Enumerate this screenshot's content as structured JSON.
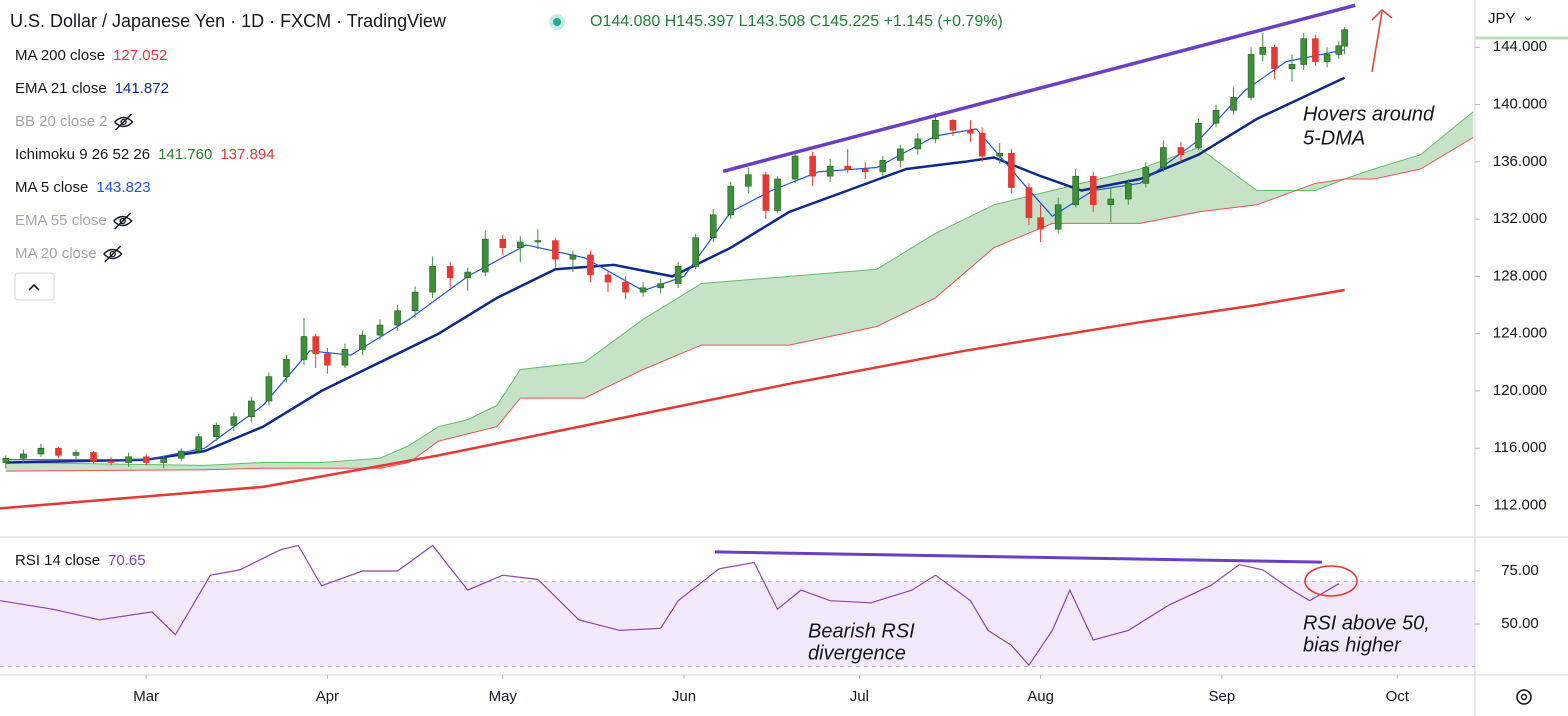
{
  "header": {
    "title": "U.S. Dollar / Japanese Yen · 1D · FXCM · TradingView",
    "ohlc": "O144.080 H145.397 L143.508 C145.225 +1.145 (+0.79%)"
  },
  "currency": "JPY",
  "chart_data": [
    {
      "type": "candlestick",
      "xlim": [
        35,
        287.3
      ],
      "xticks": [
        {
          "value": 60,
          "label": "Mar"
        },
        {
          "value": 91,
          "label": "Apr"
        },
        {
          "value": 121,
          "label": "May"
        },
        {
          "value": 152,
          "label": "Jun"
        },
        {
          "value": 182,
          "label": "Jul"
        },
        {
          "value": 213,
          "label": "Aug"
        },
        {
          "value": 244,
          "label": "Sep"
        },
        {
          "value": 274,
          "label": "Oct"
        }
      ],
      "ylim": [
        109.8,
        147.3
      ],
      "yticks": [
        {
          "value": 112,
          "label": "112.000"
        },
        {
          "value": 116,
          "label": "116.000"
        },
        {
          "value": 120,
          "label": "120.000"
        },
        {
          "value": 124,
          "label": "124.000"
        },
        {
          "value": 128,
          "label": "128.000"
        },
        {
          "value": 132,
          "label": "132.000"
        },
        {
          "value": 136,
          "label": "136.000"
        },
        {
          "value": 140,
          "label": "140.000"
        },
        {
          "value": 144,
          "label": "144.000"
        }
      ],
      "up_color": "#3f8f3a",
      "down_color": "#e53935",
      "candles": {
        "x": [
          36,
          39,
          42,
          45,
          48,
          51,
          54,
          57,
          60,
          63,
          66,
          69,
          72,
          75,
          78,
          81,
          84,
          87,
          89,
          91,
          94,
          97,
          100,
          103,
          106,
          109,
          112,
          115,
          118,
          121,
          124,
          127,
          130,
          133,
          136,
          139,
          142,
          145,
          148,
          151,
          154,
          157,
          160,
          163,
          166,
          168,
          171,
          174,
          177,
          180,
          183,
          186,
          189,
          192,
          195,
          198,
          201,
          203,
          206,
          208,
          211,
          213,
          216,
          219,
          222,
          225,
          228,
          231,
          234,
          237,
          240,
          243,
          246,
          249,
          251,
          253,
          256,
          258,
          260,
          262,
          264,
          265
        ],
        "open": [
          115.0,
          115.3,
          115.6,
          116.0,
          115.5,
          115.7,
          115.1,
          115.0,
          115.4,
          115.0,
          115.3,
          115.8,
          116.8,
          117.6,
          118.2,
          119.3,
          121.0,
          122.2,
          123.8,
          122.6,
          121.8,
          122.9,
          123.9,
          124.6,
          125.6,
          126.9,
          128.7,
          127.9,
          128.3,
          130.6,
          130.0,
          130.4,
          130.5,
          129.2,
          129.5,
          128.1,
          127.6,
          126.9,
          127.2,
          127.5,
          128.7,
          130.7,
          132.3,
          134.3,
          135.1,
          132.6,
          134.8,
          136.4,
          135.0,
          135.7,
          135.5,
          135.3,
          136.1,
          136.9,
          137.6,
          138.9,
          138.2,
          138.0,
          136.4,
          136.6,
          134.2,
          132.1,
          131.3,
          133.0,
          135.0,
          133.0,
          133.4,
          134.5,
          135.6,
          137.0,
          137.0,
          138.7,
          139.6,
          140.5,
          143.5,
          144.0,
          142.5,
          142.8,
          144.6,
          143.0,
          143.5,
          144.08
        ],
        "high": [
          115.5,
          115.9,
          116.3,
          116.1,
          115.9,
          115.8,
          115.4,
          115.7,
          115.6,
          115.5,
          116.0,
          117.0,
          117.8,
          118.5,
          119.6,
          121.3,
          122.5,
          125.1,
          124.0,
          123.0,
          123.3,
          124.2,
          125.0,
          126.0,
          127.3,
          129.4,
          129.0,
          128.6,
          131.2,
          130.9,
          130.8,
          131.3,
          130.7,
          129.8,
          129.8,
          128.4,
          128.0,
          127.6,
          127.8,
          129.0,
          131.0,
          132.7,
          134.6,
          135.6,
          135.3,
          135.0,
          136.8,
          136.7,
          136.2,
          136.9,
          136.0,
          136.4,
          137.2,
          138.0,
          139.4,
          139.0,
          138.9,
          138.4,
          137.3,
          136.9,
          134.5,
          133.0,
          133.5,
          135.5,
          135.3,
          134.2,
          134.8,
          136.0,
          137.5,
          137.4,
          139.0,
          140.0,
          141.2,
          144.0,
          145.0,
          144.2,
          143.5,
          145.0,
          144.9,
          144.0,
          144.4,
          145.397
        ],
        "low": [
          114.6,
          115.0,
          115.4,
          115.3,
          115.2,
          114.9,
          114.8,
          114.7,
          114.8,
          114.6,
          115.1,
          115.6,
          116.5,
          117.2,
          117.8,
          119.0,
          120.6,
          121.8,
          121.6,
          121.2,
          121.6,
          122.5,
          123.6,
          124.2,
          125.1,
          126.5,
          127.2,
          127.0,
          128.0,
          129.5,
          129.0,
          129.9,
          128.6,
          128.3,
          127.6,
          126.9,
          126.4,
          126.6,
          126.8,
          127.2,
          128.5,
          130.4,
          132.0,
          133.8,
          132.0,
          132.4,
          134.5,
          134.3,
          134.6,
          135.2,
          134.8,
          135.0,
          135.6,
          136.5,
          137.3,
          137.8,
          137.4,
          136.0,
          135.9,
          133.8,
          131.6,
          130.4,
          131.0,
          132.8,
          132.5,
          131.8,
          133.0,
          134.2,
          135.3,
          136.0,
          136.8,
          138.4,
          139.3,
          140.3,
          143.0,
          141.8,
          141.6,
          142.4,
          142.7,
          142.6,
          143.2,
          143.508
        ],
        "close": [
          115.3,
          115.6,
          116.0,
          115.5,
          115.7,
          115.1,
          115.0,
          115.4,
          115.0,
          115.3,
          115.8,
          116.8,
          117.6,
          118.2,
          119.3,
          121.0,
          122.2,
          123.8,
          122.6,
          121.8,
          122.9,
          123.9,
          124.6,
          125.6,
          126.9,
          128.7,
          127.9,
          128.3,
          130.6,
          130.0,
          130.4,
          130.5,
          129.2,
          129.5,
          128.1,
          127.6,
          126.9,
          127.2,
          127.5,
          128.7,
          130.7,
          132.3,
          134.3,
          135.1,
          132.6,
          134.8,
          136.4,
          135.0,
          135.7,
          135.5,
          135.3,
          136.1,
          136.9,
          137.6,
          138.9,
          138.2,
          138.0,
          136.4,
          136.6,
          134.2,
          132.1,
          131.3,
          133.0,
          135.0,
          133.0,
          133.4,
          134.5,
          135.6,
          137.0,
          136.5,
          138.7,
          139.6,
          140.5,
          143.5,
          144.0,
          142.5,
          142.8,
          144.6,
          143.0,
          143.5,
          144.1,
          145.225
        ]
      },
      "cloud": {
        "name": "Ichimoku 9 26 52 26",
        "labels": [
          "141.760",
          "137.894"
        ],
        "label_colors": [
          "#2e7d32",
          "#e53935"
        ],
        "fill": "rgba(67,160,71,0.3)",
        "color_a": "#66bb6a",
        "color_b": "#ef5350",
        "x": [
          36,
          70,
          80,
          90,
          100,
          105,
          110,
          115,
          120,
          124,
          135,
          145,
          155,
          170,
          185,
          195,
          205,
          215,
          230,
          240,
          250,
          260,
          265,
          270,
          278,
          287
        ],
        "span_a": [
          115.0,
          114.8,
          115.0,
          115.0,
          115.3,
          116.2,
          117.5,
          118.0,
          119.0,
          121.5,
          122.0,
          125.0,
          127.5,
          128.0,
          128.5,
          131.0,
          133.0,
          134.0,
          135.5,
          137.0,
          134.0,
          134.0,
          134.8,
          135.5,
          136.5,
          139.5
        ],
        "span_b": [
          114.4,
          114.5,
          114.6,
          114.6,
          114.6,
          115.0,
          116.5,
          117.0,
          117.5,
          119.5,
          119.5,
          121.5,
          123.2,
          123.2,
          124.5,
          126.5,
          130.0,
          131.7,
          131.7,
          132.5,
          133.0,
          134.5,
          134.8,
          134.8,
          135.5,
          137.7
        ]
      },
      "series": [
        {
          "name": "MA 200 close",
          "label": "127.052",
          "color": "#e53935",
          "width": 2.5,
          "x": [
            35,
            80,
            110,
            140,
            170,
            200,
            230,
            250,
            265
          ],
          "values": [
            111.8,
            113.3,
            115.5,
            118.0,
            120.5,
            122.8,
            124.8,
            126.0,
            127.05
          ]
        },
        {
          "name": "EMA 21 close",
          "label": "141.872",
          "color": "#0d2a8a",
          "width": 2.5,
          "x": [
            36,
            60,
            70,
            80,
            90,
            100,
            110,
            120,
            130,
            140,
            150,
            160,
            170,
            180,
            190,
            200,
            205,
            213,
            220,
            230,
            240,
            250,
            265
          ],
          "values": [
            115.0,
            115.2,
            115.8,
            117.5,
            120.0,
            122.0,
            124.0,
            126.5,
            128.5,
            128.8,
            128.0,
            130.0,
            132.5,
            134.0,
            135.5,
            136.0,
            136.3,
            135.0,
            134.0,
            134.8,
            136.5,
            139.0,
            141.87
          ]
        },
        {
          "name": "MA 5 close",
          "label": "143.823",
          "color": "#1e53e5",
          "width": 1.2,
          "x": [
            36,
            60,
            70,
            80,
            88,
            95,
            105,
            115,
            125,
            135,
            145,
            152,
            160,
            167,
            175,
            185,
            195,
            202,
            210,
            215,
            222,
            230,
            240,
            248,
            255,
            265
          ],
          "values": [
            115.2,
            115.2,
            116.0,
            119.0,
            122.8,
            122.5,
            125.0,
            128.0,
            130.2,
            129.3,
            127.0,
            128.0,
            132.5,
            134.0,
            135.3,
            135.6,
            137.8,
            138.3,
            134.5,
            132.2,
            134.0,
            134.5,
            137.5,
            141.0,
            143.0,
            143.82
          ]
        }
      ],
      "hidden_indicators": [
        "BB 20 close 2",
        "EMA 55 close",
        "MA 20 close"
      ],
      "trendline": {
        "x": [
          158.7,
          266.8
        ],
        "values": [
          135.34,
          146.93
        ],
        "color": "#6a3fc4"
      },
      "annotations": [
        {
          "lines": [
            "Hovers around",
            "5-DMA"
          ]
        }
      ]
    },
    {
      "type": "line",
      "name": "RSI 14 close",
      "label": "70.65",
      "color": "#8e44ad",
      "xlim": [
        35,
        287.3
      ],
      "ylim": [
        26,
        91
      ],
      "yticks": [
        {
          "value": 50,
          "label": "50.00"
        },
        {
          "value": 75,
          "label": "75.00"
        }
      ],
      "band": [
        30,
        70
      ],
      "x": [
        35,
        44,
        52,
        61,
        65,
        71,
        76,
        83,
        86,
        90,
        97,
        103,
        109,
        115,
        121,
        127,
        134,
        141,
        148,
        151,
        158,
        164,
        168,
        172,
        177,
        184,
        191,
        195,
        201,
        204,
        208,
        211,
        215,
        218,
        222,
        228,
        235,
        242,
        247,
        251,
        256,
        259,
        264
      ],
      "values": [
        61,
        57,
        52,
        55.7,
        45,
        73,
        75.5,
        85,
        87,
        68,
        75,
        75,
        87,
        66,
        73,
        71,
        52,
        47,
        48,
        61,
        76,
        79,
        57,
        66,
        61,
        60,
        66,
        73,
        61,
        47,
        40,
        30.6,
        47,
        66,
        42.5,
        47,
        59,
        68,
        78,
        75.5,
        66,
        61,
        69
      ],
      "trendline": {
        "x": [
          157.3,
          261.1
        ],
        "values": [
          84,
          79.2
        ],
        "color": "#6a3fc4"
      },
      "annotations": [
        {
          "lines": [
            "Bearish RSI",
            "divergence"
          ]
        },
        {
          "lines": [
            "RSI above 50,",
            "bias higher"
          ]
        }
      ]
    }
  ]
}
